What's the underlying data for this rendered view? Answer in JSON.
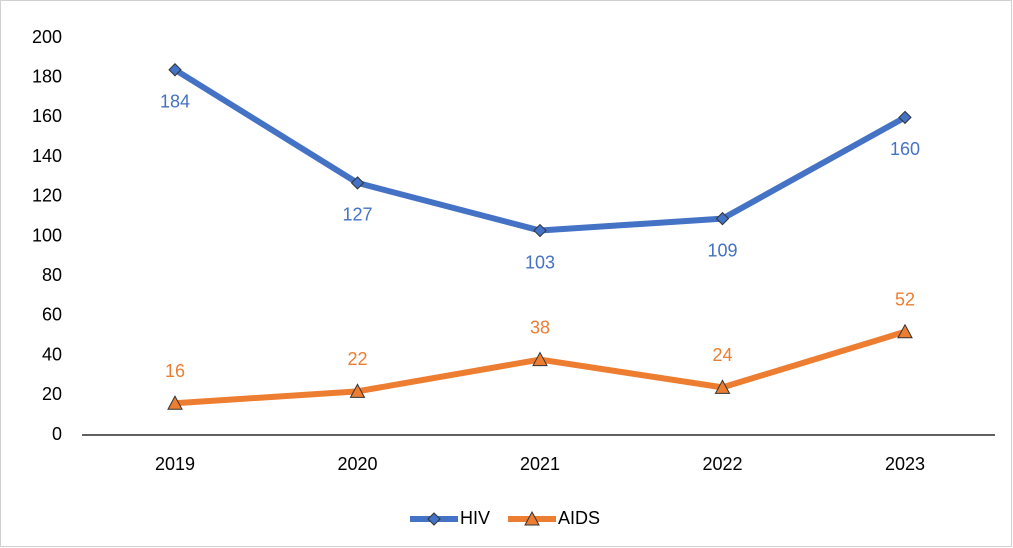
{
  "chart_data": {
    "type": "line",
    "categories": [
      "2019",
      "2020",
      "2021",
      "2022",
      "2023"
    ],
    "series": [
      {
        "name": "HIV",
        "color": "#4472c4",
        "marker": "diamond",
        "label_position": "below",
        "values": [
          184,
          127,
          103,
          109,
          160
        ]
      },
      {
        "name": "AIDS",
        "color": "#ed7d31",
        "marker": "triangle",
        "label_position": "above",
        "values": [
          16,
          22,
          38,
          24,
          52
        ]
      }
    ],
    "ylim": [
      0,
      200
    ],
    "yticks": [
      0,
      20,
      40,
      60,
      80,
      100,
      120,
      140,
      160,
      180,
      200
    ],
    "grid": false,
    "legend": "bottom"
  }
}
